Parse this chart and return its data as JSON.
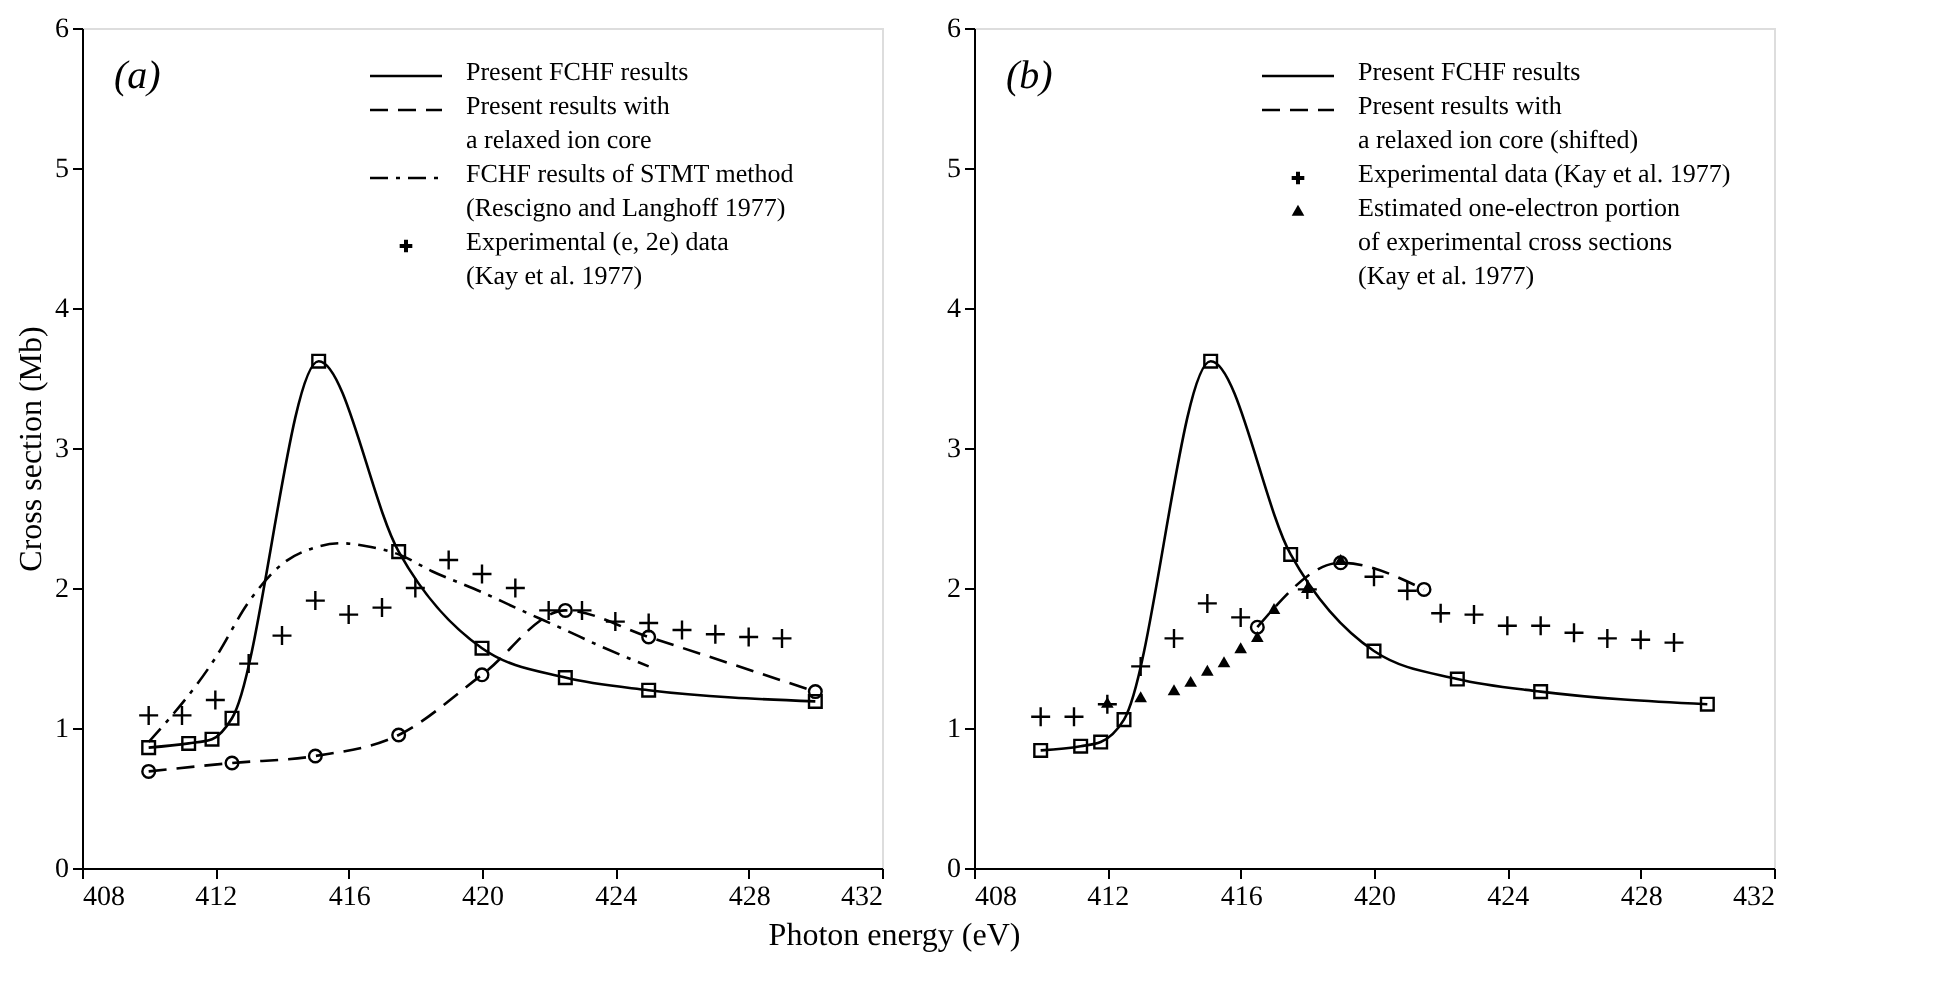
{
  "chart_data": [
    {
      "type": "line",
      "title": "(a)",
      "xlabel": "Photon energy (eV)",
      "ylabel": "Cross section (Mb)",
      "xlim": [
        408,
        432
      ],
      "xticks": [
        408,
        412,
        416,
        420,
        424,
        428,
        432
      ],
      "ylim": [
        0,
        6
      ],
      "yticks": [
        0,
        1,
        2,
        3,
        4,
        5,
        6
      ],
      "grid": false,
      "legend": "top right",
      "series": [
        {
          "name": "Present FCHF results",
          "color": "#000000",
          "line_style": "solid",
          "marker": "square",
          "x": [
            410,
            411.2,
            411.9,
            412.5,
            415.1,
            417.5,
            420,
            422.5,
            425,
            430
          ],
          "values": [
            0.86,
            0.89,
            0.92,
            1.07,
            3.62,
            2.26,
            1.57,
            1.36,
            1.27,
            1.19
          ]
        },
        {
          "name": "Present results with\na relaxed ion core",
          "color": "#000000",
          "line_style": "dashed",
          "marker": "circle",
          "x": [
            410,
            412.5,
            415,
            417.5,
            420,
            422.5,
            425,
            430
          ],
          "values": [
            0.69,
            0.75,
            0.8,
            0.95,
            1.38,
            1.84,
            1.65,
            1.26
          ]
        },
        {
          "name": "FCHF results of STMT method\n(Rescigno and Langhoff 1977)",
          "color": "#000000",
          "line_style": "dashdot",
          "marker": "none",
          "x": [
            410,
            412,
            413,
            414,
            415,
            415.8,
            416.5,
            417.5,
            418.5,
            420,
            421,
            422.5,
            423.5,
            425
          ],
          "values": [
            0.9,
            1.5,
            1.9,
            2.17,
            2.29,
            2.32,
            2.3,
            2.24,
            2.12,
            1.97,
            1.86,
            1.7,
            1.59,
            1.44
          ]
        },
        {
          "name": "Experimental (e, 2e) data\n(Kay et al. 1977)",
          "type": "scatter",
          "color": "#000000",
          "marker": "cross",
          "x": [
            410,
            411,
            412,
            413,
            414,
            415,
            416,
            417,
            418,
            419,
            420,
            421,
            422,
            423,
            424,
            425,
            426,
            427,
            428,
            429
          ],
          "values": [
            1.09,
            1.09,
            1.2,
            1.46,
            1.66,
            1.91,
            1.81,
            1.86,
            2.0,
            2.2,
            2.1,
            2.0,
            1.84,
            1.84,
            1.76,
            1.75,
            1.7,
            1.67,
            1.65,
            1.64
          ]
        }
      ]
    },
    {
      "type": "line",
      "title": "(b)",
      "xlim": [
        408,
        432
      ],
      "xticks": [
        408,
        412,
        416,
        420,
        424,
        428,
        432
      ],
      "ylim": [
        0,
        6
      ],
      "yticks": [
        0,
        1,
        2,
        3,
        4,
        5,
        6
      ],
      "grid": false,
      "legend": "top right",
      "series": [
        {
          "name": "Present FCHF results",
          "color": "#000000",
          "line_style": "solid",
          "marker": "square",
          "x": [
            410,
            411.2,
            411.8,
            412.5,
            415.1,
            417.5,
            420,
            422.5,
            425,
            430
          ],
          "values": [
            0.84,
            0.87,
            0.9,
            1.06,
            3.62,
            2.24,
            1.55,
            1.35,
            1.26,
            1.17
          ]
        },
        {
          "name": "Present results with\na relaxed ion core (shifted)",
          "color": "#000000",
          "line_style": "dashed",
          "marker": "circle",
          "x": [
            416.5,
            419,
            421.5
          ],
          "values": [
            1.72,
            2.18,
            1.99
          ]
        },
        {
          "name": "Experimental data (Kay et al. 1977)",
          "type": "scatter",
          "color": "#000000",
          "marker": "cross",
          "x": [
            410,
            411,
            412,
            413,
            414,
            415,
            416,
            418,
            420,
            421,
            422,
            423,
            424,
            425,
            426,
            427,
            428,
            429
          ],
          "values": [
            1.08,
            1.08,
            1.17,
            1.44,
            1.64,
            1.89,
            1.79,
            1.99,
            2.08,
            1.98,
            1.82,
            1.81,
            1.73,
            1.73,
            1.68,
            1.64,
            1.63,
            1.61
          ]
        },
        {
          "name": "Estimated one-electron portion\nof experimental cross sections\n(Kay et al. 1977)",
          "type": "scatter",
          "color": "#000000",
          "marker": "triangle",
          "x": [
            412,
            413,
            414,
            414.5,
            415,
            415.5,
            416,
            416.5,
            417,
            418,
            419
          ],
          "values": [
            1.17,
            1.21,
            1.26,
            1.32,
            1.4,
            1.46,
            1.56,
            1.64,
            1.84,
            1.99,
            2.19
          ]
        }
      ]
    }
  ]
}
